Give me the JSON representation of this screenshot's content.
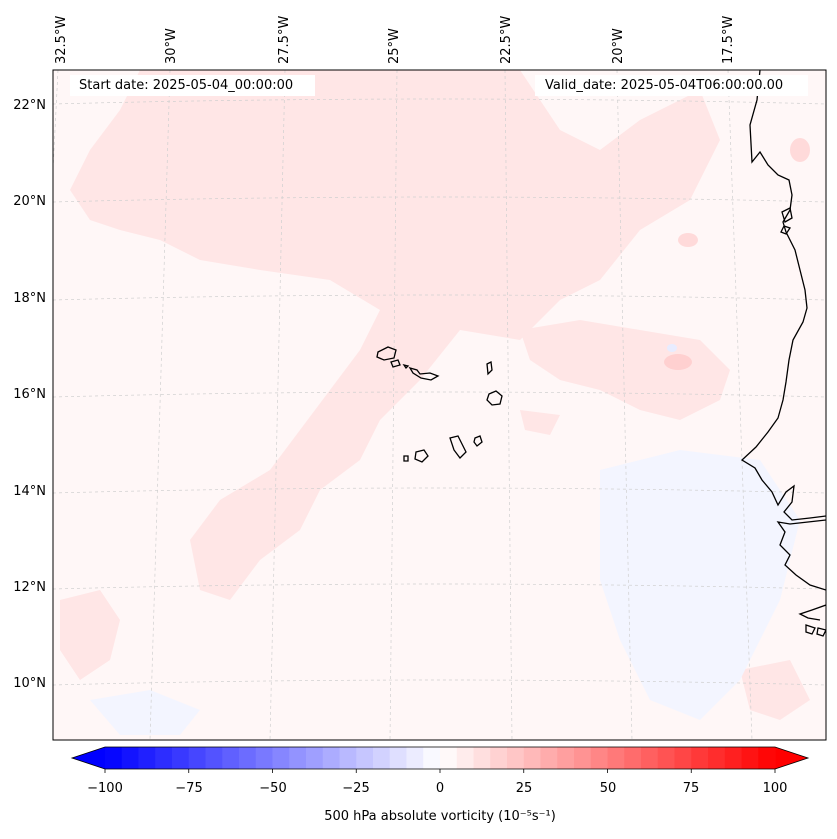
{
  "map": {
    "start_date": "Start date: 2025-05-04_00:00:00",
    "valid_date": "Valid_date: 2025-05-04T06:00:00.00",
    "lon_labels": [
      "32.5°W",
      "30°W",
      "27.5°W",
      "25°W",
      "22.5°W",
      "20°W",
      "17.5°W"
    ],
    "lat_labels": [
      "22°N",
      "20°N",
      "18°N",
      "16°N",
      "14°N",
      "12°N",
      "10°N"
    ],
    "colors": {
      "coast": "#000000",
      "grid": "#c8c8c8",
      "pink_light": "#fff0f0",
      "pink": "#ffe3e3",
      "pink_mid": "#ffd2d2",
      "blue_light": "#f3f5ff"
    }
  },
  "colorbar": {
    "label": "500 hPa absolute vorticity (10⁻⁵s⁻¹)",
    "tick_labels": [
      "−100",
      "−75",
      "−50",
      "−25",
      "0",
      "25",
      "50",
      "75",
      "100"
    ],
    "vmin": -100,
    "vmax": 100,
    "levels": 40,
    "low_color": "#0000ff",
    "mid_color": "#ffffff",
    "high_color": "#ff0000"
  }
}
